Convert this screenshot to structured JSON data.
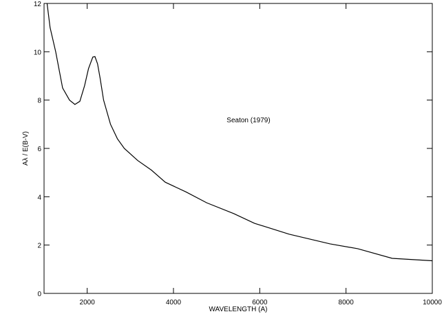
{
  "chart_data": {
    "type": "line",
    "x_label": "WAVELENGTH (A)",
    "y_label": "Aλ / E(B-V)",
    "annotation": "Seaton (1979)",
    "xlim": [
      1000,
      10000
    ],
    "xticks": [
      2000,
      4000,
      6000,
      8000,
      10000
    ],
    "ylim": [
      0,
      12
    ],
    "yticks": [
      0,
      2,
      4,
      6,
      8,
      10,
      12
    ],
    "color": "#000000",
    "x": [
      1070,
      1140,
      1270,
      1430,
      1590,
      1715,
      1830,
      1940,
      2030,
      2130,
      2180,
      2240,
      2300,
      2380,
      2540,
      2700,
      2860,
      3170,
      3490,
      3810,
      4290,
      4770,
      5400,
      5880,
      6680,
      7630,
      8270,
      9070,
      10000
    ],
    "values": [
      12,
      11,
      10,
      8.5,
      8,
      7.82,
      7.95,
      8.6,
      9.3,
      9.78,
      9.8,
      9.5,
      8.9,
      8,
      7,
      6.4,
      6,
      5.5,
      5.1,
      4.6,
      4.2,
      3.75,
      3.3,
      2.9,
      2.45,
      2.05,
      1.85,
      1.45,
      1.35
    ]
  }
}
